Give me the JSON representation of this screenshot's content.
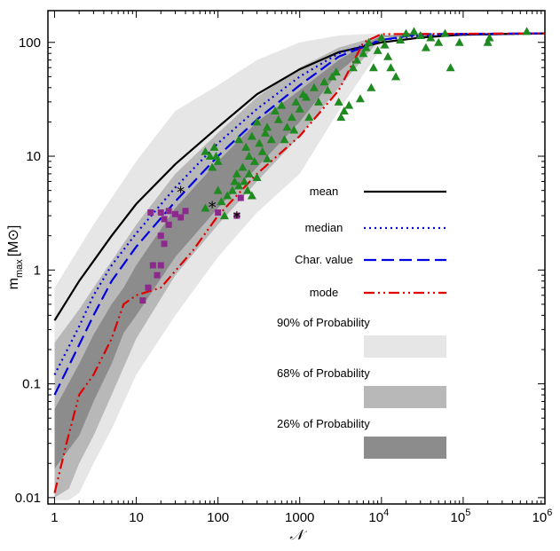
{
  "chart_data": {
    "type": "line",
    "xlabel": "𝒩",
    "ylabel": {
      "text": "m",
      "sub": "max",
      "unit_open": "[M",
      "unit_symbol": "⊙",
      "unit_close": "]"
    },
    "xscale": "log",
    "yscale": "log",
    "xlim": [
      0.83,
      1000000
    ],
    "ylim": [
      0.0088,
      190
    ],
    "x_ticks": [
      {
        "v": 1,
        "label": "1"
      },
      {
        "v": 10,
        "label": "10"
      },
      {
        "v": 100,
        "label": "100"
      },
      {
        "v": 1000,
        "label": "1000"
      },
      {
        "v": 10000,
        "label": "10",
        "sup": "4"
      },
      {
        "v": 100000,
        "label": "10",
        "sup": "5"
      },
      {
        "v": 1000000,
        "label": "10",
        "sup": "6"
      }
    ],
    "y_ticks": [
      {
        "v": 0.01,
        "label": "0.01"
      },
      {
        "v": 0.1,
        "label": "0.1"
      },
      {
        "v": 1,
        "label": "1"
      },
      {
        "v": 10,
        "label": "10"
      },
      {
        "v": 100,
        "label": "100"
      }
    ],
    "bands": [
      {
        "name": "90% of Probability",
        "color": "#e6e6e6",
        "upper": [
          [
            1,
            0.7
          ],
          [
            3,
            2.5
          ],
          [
            10,
            9
          ],
          [
            30,
            25
          ],
          [
            100,
            42
          ],
          [
            300,
            70
          ],
          [
            1000,
            100
          ],
          [
            3000,
            115
          ],
          [
            10000,
            120
          ],
          [
            1000000,
            120
          ]
        ],
        "lower": [
          [
            1,
            0.0095
          ],
          [
            1.5,
            0.0095
          ],
          [
            2,
            0.011
          ],
          [
            3,
            0.02
          ],
          [
            5,
            0.04
          ],
          [
            10,
            0.12
          ],
          [
            30,
            0.4
          ],
          [
            100,
            1.3
          ],
          [
            300,
            3.2
          ],
          [
            1000,
            7
          ],
          [
            3000,
            25
          ],
          [
            10000,
            90
          ],
          [
            20000,
            118
          ],
          [
            1000000,
            118
          ]
        ]
      },
      {
        "name": "68% of Probability",
        "color": "#b8b8b8",
        "upper": [
          [
            1,
            0.23
          ],
          [
            2,
            0.45
          ],
          [
            3,
            0.7
          ],
          [
            5,
            1.2
          ],
          [
            10,
            2.5
          ],
          [
            30,
            7
          ],
          [
            100,
            16
          ],
          [
            300,
            33
          ],
          [
            1000,
            60
          ],
          [
            3000,
            90
          ],
          [
            10000,
            115
          ],
          [
            1000000,
            118
          ]
        ],
        "lower": [
          [
            1,
            0.01
          ],
          [
            1.5,
            0.012
          ],
          [
            2,
            0.02
          ],
          [
            3,
            0.035
          ],
          [
            5,
            0.08
          ],
          [
            10,
            0.25
          ],
          [
            30,
            0.9
          ],
          [
            100,
            2.5
          ],
          [
            300,
            6
          ],
          [
            1000,
            15
          ],
          [
            3000,
            40
          ],
          [
            10000,
            110
          ],
          [
            1000000,
            118
          ]
        ]
      },
      {
        "name": "26% of Probability",
        "color": "#8c8c8c",
        "upper": [
          [
            1,
            0.06
          ],
          [
            2,
            0.15
          ],
          [
            3,
            0.27
          ],
          [
            5,
            0.5
          ],
          [
            7,
            0.7
          ],
          [
            10,
            1.1
          ],
          [
            30,
            3.5
          ],
          [
            100,
            9
          ],
          [
            300,
            20
          ],
          [
            1000,
            38
          ],
          [
            3000,
            70
          ],
          [
            10000,
            115
          ],
          [
            1000000,
            118
          ]
        ],
        "lower": [
          [
            1,
            0.018
          ],
          [
            2,
            0.035
          ],
          [
            3,
            0.07
          ],
          [
            5,
            0.15
          ],
          [
            7,
            0.28
          ],
          [
            10,
            0.4
          ],
          [
            30,
            1.3
          ],
          [
            100,
            3.5
          ],
          [
            300,
            8
          ],
          [
            1000,
            20
          ],
          [
            3000,
            55
          ],
          [
            10000,
            112
          ],
          [
            1000000,
            118
          ]
        ]
      }
    ],
    "series": [
      {
        "name": "mean",
        "color": "#000000",
        "dash": "",
        "width": 2.2,
        "points": [
          [
            1,
            0.36
          ],
          [
            2,
            0.8
          ],
          [
            3,
            1.2
          ],
          [
            5,
            2.0
          ],
          [
            10,
            3.8
          ],
          [
            30,
            8.5
          ],
          [
            100,
            18
          ],
          [
            300,
            35
          ],
          [
            1000,
            58
          ],
          [
            3000,
            82
          ],
          [
            10000,
            100
          ],
          [
            30000,
            110
          ],
          [
            100000,
            117
          ],
          [
            1000000,
            120
          ]
        ]
      },
      {
        "name": "median",
        "color": "#0000e0",
        "dash": "2,4",
        "width": 2.2,
        "points": [
          [
            1,
            0.12
          ],
          [
            2,
            0.32
          ],
          [
            3,
            0.6
          ],
          [
            5,
            1.1
          ],
          [
            10,
            2.1
          ],
          [
            30,
            5.3
          ],
          [
            100,
            13
          ],
          [
            300,
            26
          ],
          [
            1000,
            50
          ],
          [
            3000,
            80
          ],
          [
            10000,
            105
          ],
          [
            30000,
            115
          ],
          [
            1000000,
            120
          ]
        ]
      },
      {
        "name": "Char. value",
        "color": "#0000e0",
        "dash": "14,6",
        "width": 2.2,
        "points": [
          [
            1,
            0.08
          ],
          [
            2,
            0.22
          ],
          [
            3,
            0.4
          ],
          [
            5,
            0.8
          ],
          [
            10,
            1.6
          ],
          [
            30,
            4.0
          ],
          [
            100,
            10
          ],
          [
            300,
            21
          ],
          [
            1000,
            42
          ],
          [
            3000,
            75
          ],
          [
            10000,
            105
          ],
          [
            30000,
            118
          ],
          [
            1000000,
            120
          ]
        ]
      },
      {
        "name": "mode",
        "color": "#e00000",
        "dash": "12,4,2,4,2,4",
        "width": 2.2,
        "points": [
          [
            1,
            0.011
          ],
          [
            1.4,
            0.03
          ],
          [
            2,
            0.08
          ],
          [
            3,
            0.12
          ],
          [
            5,
            0.25
          ],
          [
            7,
            0.5
          ],
          [
            10,
            0.6
          ],
          [
            20,
            0.7
          ],
          [
            50,
            1.5
          ],
          [
            100,
            3.0
          ],
          [
            300,
            7
          ],
          [
            1000,
            15
          ],
          [
            3000,
            38
          ],
          [
            6000,
            100
          ],
          [
            10000,
            118
          ],
          [
            1000000,
            120
          ]
        ]
      }
    ],
    "legend": {
      "placement": "center-right",
      "entries": [
        {
          "label": "mean",
          "kind": "line",
          "ref": "mean"
        },
        {
          "label": "median",
          "kind": "line",
          "ref": "median"
        },
        {
          "label": "Char. value",
          "kind": "line",
          "ref": "Char. value"
        },
        {
          "label": "mode",
          "kind": "line",
          "ref": "mode"
        },
        {
          "label": "90% of Probability",
          "kind": "box",
          "color": "#e6e6e6"
        },
        {
          "label": "68% of Probability",
          "kind": "box",
          "color": "#b8b8b8"
        },
        {
          "label": "26% of Probability",
          "kind": "box",
          "color": "#8c8c8c"
        }
      ]
    },
    "markers": {
      "triangles": {
        "color": "#1f8a1f",
        "points": [
          [
            70,
            11
          ],
          [
            80,
            10
          ],
          [
            85,
            8
          ],
          [
            90,
            12
          ],
          [
            95,
            10
          ],
          [
            100,
            9
          ],
          [
            100,
            5
          ],
          [
            110,
            4
          ],
          [
            70,
            3.5
          ],
          [
            120,
            3
          ],
          [
            130,
            4.5
          ],
          [
            150,
            5
          ],
          [
            160,
            6
          ],
          [
            170,
            7
          ],
          [
            180,
            14
          ],
          [
            200,
            8
          ],
          [
            210,
            6
          ],
          [
            220,
            12
          ],
          [
            230,
            5
          ],
          [
            240,
            10
          ],
          [
            260,
            15
          ],
          [
            280,
            9
          ],
          [
            300,
            20
          ],
          [
            320,
            13
          ],
          [
            350,
            11
          ],
          [
            380,
            16
          ],
          [
            400,
            18
          ],
          [
            450,
            14
          ],
          [
            500,
            25
          ],
          [
            550,
            21
          ],
          [
            600,
            28
          ],
          [
            700,
            18
          ],
          [
            800,
            22
          ],
          [
            900,
            30
          ],
          [
            1000,
            26
          ],
          [
            1100,
            35
          ],
          [
            1200,
            33
          ],
          [
            1500,
            40
          ],
          [
            1700,
            30
          ],
          [
            2000,
            45
          ],
          [
            2200,
            38
          ],
          [
            2500,
            50
          ],
          [
            2800,
            55
          ],
          [
            3000,
            30
          ],
          [
            3200,
            22
          ],
          [
            3500,
            25
          ],
          [
            4000,
            28
          ],
          [
            4500,
            60
          ],
          [
            5000,
            70
          ],
          [
            5500,
            32
          ],
          [
            6000,
            80
          ],
          [
            6500,
            90
          ],
          [
            7000,
            100
          ],
          [
            7500,
            40
          ],
          [
            8000,
            60
          ],
          [
            9000,
            85
          ],
          [
            10000,
            110
          ],
          [
            11000,
            95
          ],
          [
            12000,
            75
          ],
          [
            13000,
            60
          ],
          [
            15000,
            50
          ],
          [
            17000,
            105
          ],
          [
            20000,
            120
          ],
          [
            25000,
            125
          ],
          [
            30000,
            115
          ],
          [
            35000,
            90
          ],
          [
            40000,
            110
          ],
          [
            50000,
            100
          ],
          [
            60000,
            120
          ],
          [
            70000,
            60
          ],
          [
            90000,
            100
          ],
          [
            200000,
            100
          ],
          [
            210000,
            110
          ],
          [
            600000,
            125
          ],
          [
            240,
            7
          ],
          [
            260,
            4.5
          ],
          [
            180,
            5.5
          ],
          [
            300,
            6.5
          ],
          [
            400,
            9.5
          ],
          [
            650,
            14
          ],
          [
            850,
            17
          ],
          [
            1300,
            22
          ]
        ]
      },
      "squares": {
        "color": "#8b2a8b",
        "points": [
          [
            15,
            3.2
          ],
          [
            20,
            3.2
          ],
          [
            22,
            2.8
          ],
          [
            25,
            3.3
          ],
          [
            30,
            3.1
          ],
          [
            35,
            2.9
          ],
          [
            40,
            3.3
          ],
          [
            20,
            2.0
          ],
          [
            22,
            1.7
          ],
          [
            25,
            2.5
          ],
          [
            16,
            1.1
          ],
          [
            20,
            1.1
          ],
          [
            18,
            0.9
          ],
          [
            14,
            0.7
          ],
          [
            12,
            0.54
          ],
          [
            100,
            3.2
          ],
          [
            170,
            3.0
          ],
          [
            190,
            4.3
          ]
        ]
      },
      "stars": {
        "color": "#000000",
        "points": [
          [
            35,
            5.0
          ],
          [
            85,
            3.7
          ],
          [
            170,
            3.0
          ]
        ]
      }
    }
  }
}
